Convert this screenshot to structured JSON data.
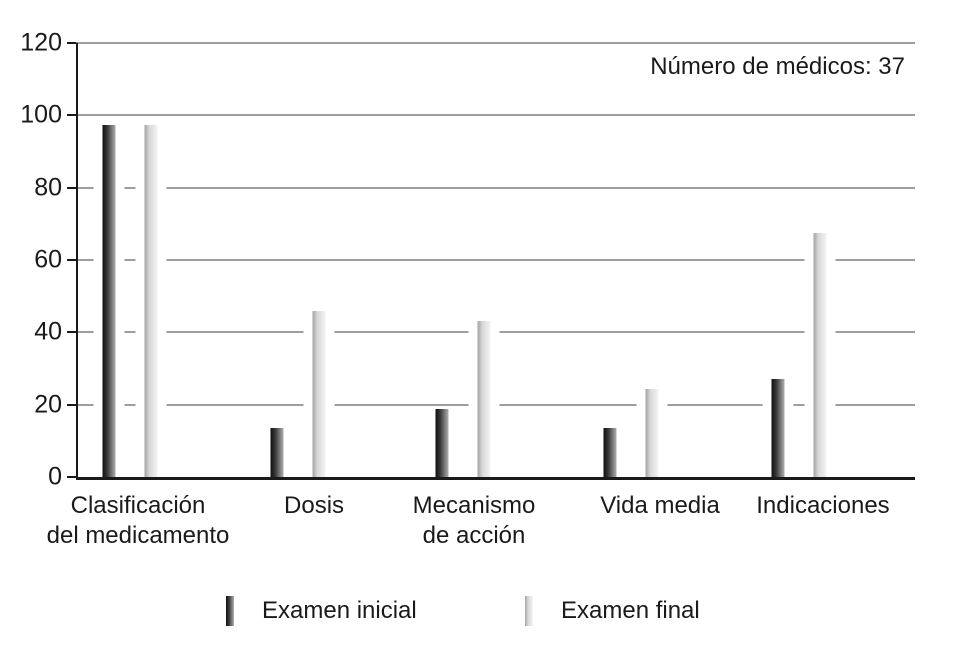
{
  "chart_data": {
    "type": "bar",
    "title": "",
    "annotation": "Número de médicos: 37",
    "categories": [
      "Clasificación del medicamento",
      "Dosis",
      "Mecanismo de acción",
      "Vida media",
      "Indicaciones"
    ],
    "category_label_lines": [
      [
        "Clasificación",
        "del medicamento"
      ],
      [
        "Dosis"
      ],
      [
        "Mecanismo",
        "de acción"
      ],
      [
        "Vida media"
      ],
      [
        "Indicaciones"
      ]
    ],
    "series": [
      {
        "name": "Examen inicial",
        "values": [
          97.3,
          13.5,
          18.9,
          13.5,
          27.0
        ],
        "color_left": "#0f0f0f",
        "color_mid": "#3a3a3a",
        "color_right": "#b0b0b0"
      },
      {
        "name": "Examen final",
        "values": [
          97.3,
          45.9,
          43.2,
          24.3,
          67.6
        ],
        "color_left": "#a2a2a2",
        "color_mid": "#d8d8d8",
        "color_right": "#f4f4f4"
      }
    ],
    "y_ticks": [
      0,
      20,
      40,
      60,
      80,
      100,
      120
    ],
    "ylim": [
      0,
      120
    ],
    "xlabel": "",
    "ylabel": "",
    "grid": true,
    "legend_position": "bottom"
  },
  "colors": {
    "background": "#ffffff",
    "gridline": "#9e9e9e",
    "axis": "#1a1a1a",
    "text": "#1a1a1a"
  }
}
